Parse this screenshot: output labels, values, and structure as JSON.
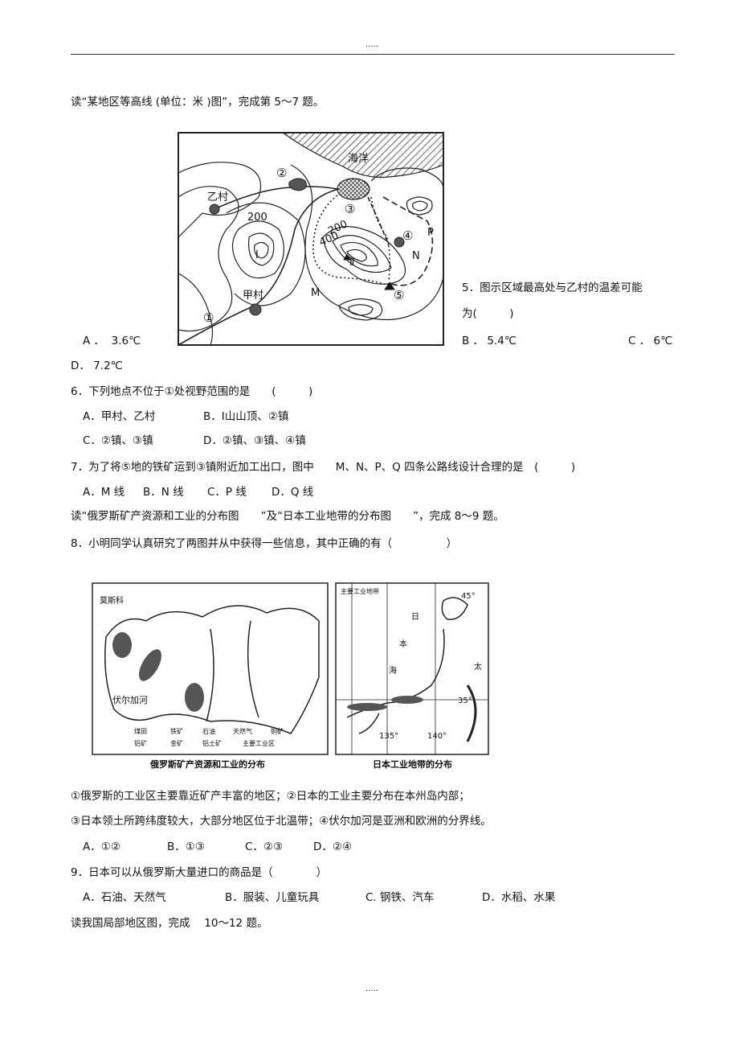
{
  "header": ".....",
  "footer": ".....",
  "intro1": "读“某地区等高线 (单位：米 )图”，完成第 5～7 题。",
  "figure1": {
    "labels": {
      "ocean": "海洋",
      "n2": "②",
      "yicun": "乙村",
      "c200a": "200",
      "n3": "③",
      "n4": "④",
      "p": "P",
      "c400": "400",
      "c200b": "200",
      "peak1": "Ⅰ",
      "peak2": "Ⅱ",
      "n": "N",
      "m": "M",
      "jiacun": "甲村",
      "n1": "①",
      "n5": "⑤"
    }
  },
  "q5": {
    "stem": [
      "5．图示区域最高处与乙村的温差可能",
      "为(　　　)"
    ],
    "options": [
      "A ．  3.6℃",
      "B ． 5.4℃",
      "C ． 6℃",
      "D． 7.2℃"
    ]
  },
  "q6": {
    "stem": "6．下列地点不位于①处视野范围的是　　(　　　)",
    "options": [
      "A．甲村、乙村",
      "B．Ⅰ山山顶、②镇",
      "C．②镇、③镇",
      "D．②镇、③镇、④镇"
    ]
  },
  "q7": {
    "stem": "7．为了将⑤地的铁矿运到③镇附近加工出口，图中　　M、N、P、Q 四条公路线设计合理的是　(　　　)",
    "options": [
      "A．M 线",
      "B．N 线",
      "C．P 线",
      "D．Q 线"
    ]
  },
  "intro2": "读“俄罗斯矿产资源和工业的分布图　　”及“日本工业地带的分布图　　”，完成 8～9 题。",
  "q8": {
    "stem": "8．小明同学认真研究了两图并从中获得一些信息，其中正确的有（　　　　　）",
    "statements": [
      "①俄罗斯的工业区主要靠近矿产丰富的地区；②日本的工业主要分布在本州岛内部；",
      "③日本领土所跨纬度较大，大部分地区位于北温带；④伏尔加河是亚洲和欧洲的分界线。"
    ],
    "options": [
      "A．①②",
      "B．①③",
      "C．②③",
      "D．②④"
    ]
  },
  "figure2": {
    "russia": {
      "caption": "俄罗斯矿产资源和工业的分布",
      "moscow": "莫斯科",
      "volga": "伏尔加河",
      "legend": [
        "煤田",
        "铁矿",
        "石油",
        "天然气",
        "铜矿",
        "铝矿",
        "金矿",
        "铝土矿",
        "主要工业区"
      ]
    },
    "japan": {
      "caption": "日本工业地带的分布",
      "legend": "主要工业地带",
      "lat45": "45°",
      "lat35": "35°",
      "lon135": "135°",
      "lon140": "140°",
      "sea": [
        "日",
        "本",
        "海"
      ],
      "ocean": "太"
    }
  },
  "q9": {
    "stem": "9．日本可以从俄罗斯大量进口的商品是（　　　　）",
    "options": [
      "A．石油、天然气",
      "B．服装、儿童玩具",
      "C. 钢铁、汽车",
      "D．水稻、水果"
    ]
  },
  "intro3": "读我国局部地区图，完成　 10～12 题。"
}
